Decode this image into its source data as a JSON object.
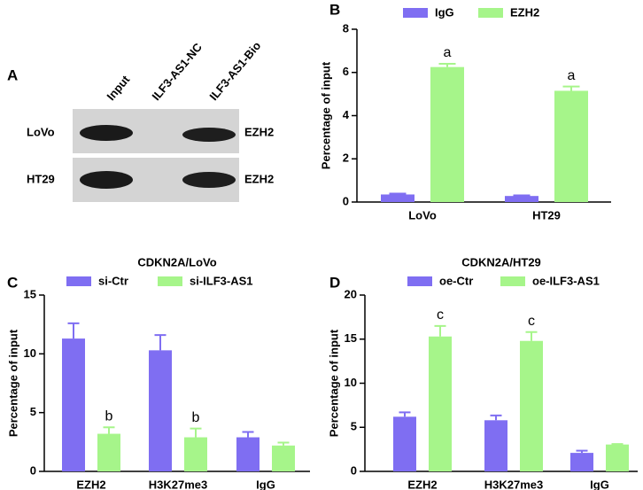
{
  "blot": {
    "panel_label": "A",
    "lanes": [
      "Input",
      "ILF3-AS1-NC",
      "ILF3-AS1-Bio"
    ],
    "rows": [
      {
        "label": "LoVo",
        "target": "EZH2"
      },
      {
        "label": "HT29",
        "target": "EZH2"
      }
    ]
  },
  "chart_data": [
    {
      "type": "bar",
      "panel_label": "B",
      "y_label": "Percentage of input",
      "categories": [
        "LoVo",
        "HT29"
      ],
      "series": [
        {
          "name": "IgG",
          "color": "#7f6ef2",
          "values": [
            0.35,
            0.28
          ],
          "errors": [
            0.04,
            0.03
          ]
        },
        {
          "name": "EZH2",
          "color": "#a6f58a",
          "values": [
            6.25,
            5.15
          ],
          "errors": [
            0.15,
            0.2
          ],
          "labels": [
            "a",
            "a"
          ]
        }
      ],
      "ylim": [
        0,
        8
      ],
      "yticks": [
        0,
        2,
        4,
        6,
        8
      ]
    },
    {
      "type": "bar",
      "panel_label": "C",
      "title": "CDKN2A/LoVo",
      "y_label": "Percentage of input",
      "categories": [
        "EZH2",
        "H3K27me3",
        "IgG"
      ],
      "series": [
        {
          "name": "si-Ctr",
          "color": "#7f6ef2",
          "values": [
            11.3,
            10.3,
            2.9
          ],
          "errors": [
            1.3,
            1.3,
            0.45
          ]
        },
        {
          "name": "si-ILF3-AS1",
          "color": "#a6f58a",
          "values": [
            3.2,
            2.9,
            2.2
          ],
          "errors": [
            0.55,
            0.75,
            0.25
          ],
          "labels": [
            "b",
            "b",
            null
          ]
        }
      ],
      "ylim": [
        0,
        15
      ],
      "yticks": [
        0,
        5,
        10,
        15
      ]
    },
    {
      "type": "bar",
      "panel_label": "D",
      "title": "CDKN2A/HT29",
      "y_label": "Percentage of input",
      "categories": [
        "EZH2",
        "H3K27me3",
        "IgG"
      ],
      "series": [
        {
          "name": "oe-Ctr",
          "color": "#7f6ef2",
          "values": [
            6.2,
            5.8,
            2.1
          ],
          "errors": [
            0.5,
            0.55,
            0.25
          ]
        },
        {
          "name": "oe-ILF3-AS1",
          "color": "#a6f58a",
          "values": [
            15.3,
            14.8,
            3.05
          ],
          "errors": [
            1.2,
            1.0,
            0.05
          ],
          "labels": [
            "c",
            "c",
            null
          ]
        }
      ],
      "ylim": [
        0,
        20
      ],
      "yticks": [
        0,
        5,
        10,
        15,
        20
      ]
    }
  ]
}
